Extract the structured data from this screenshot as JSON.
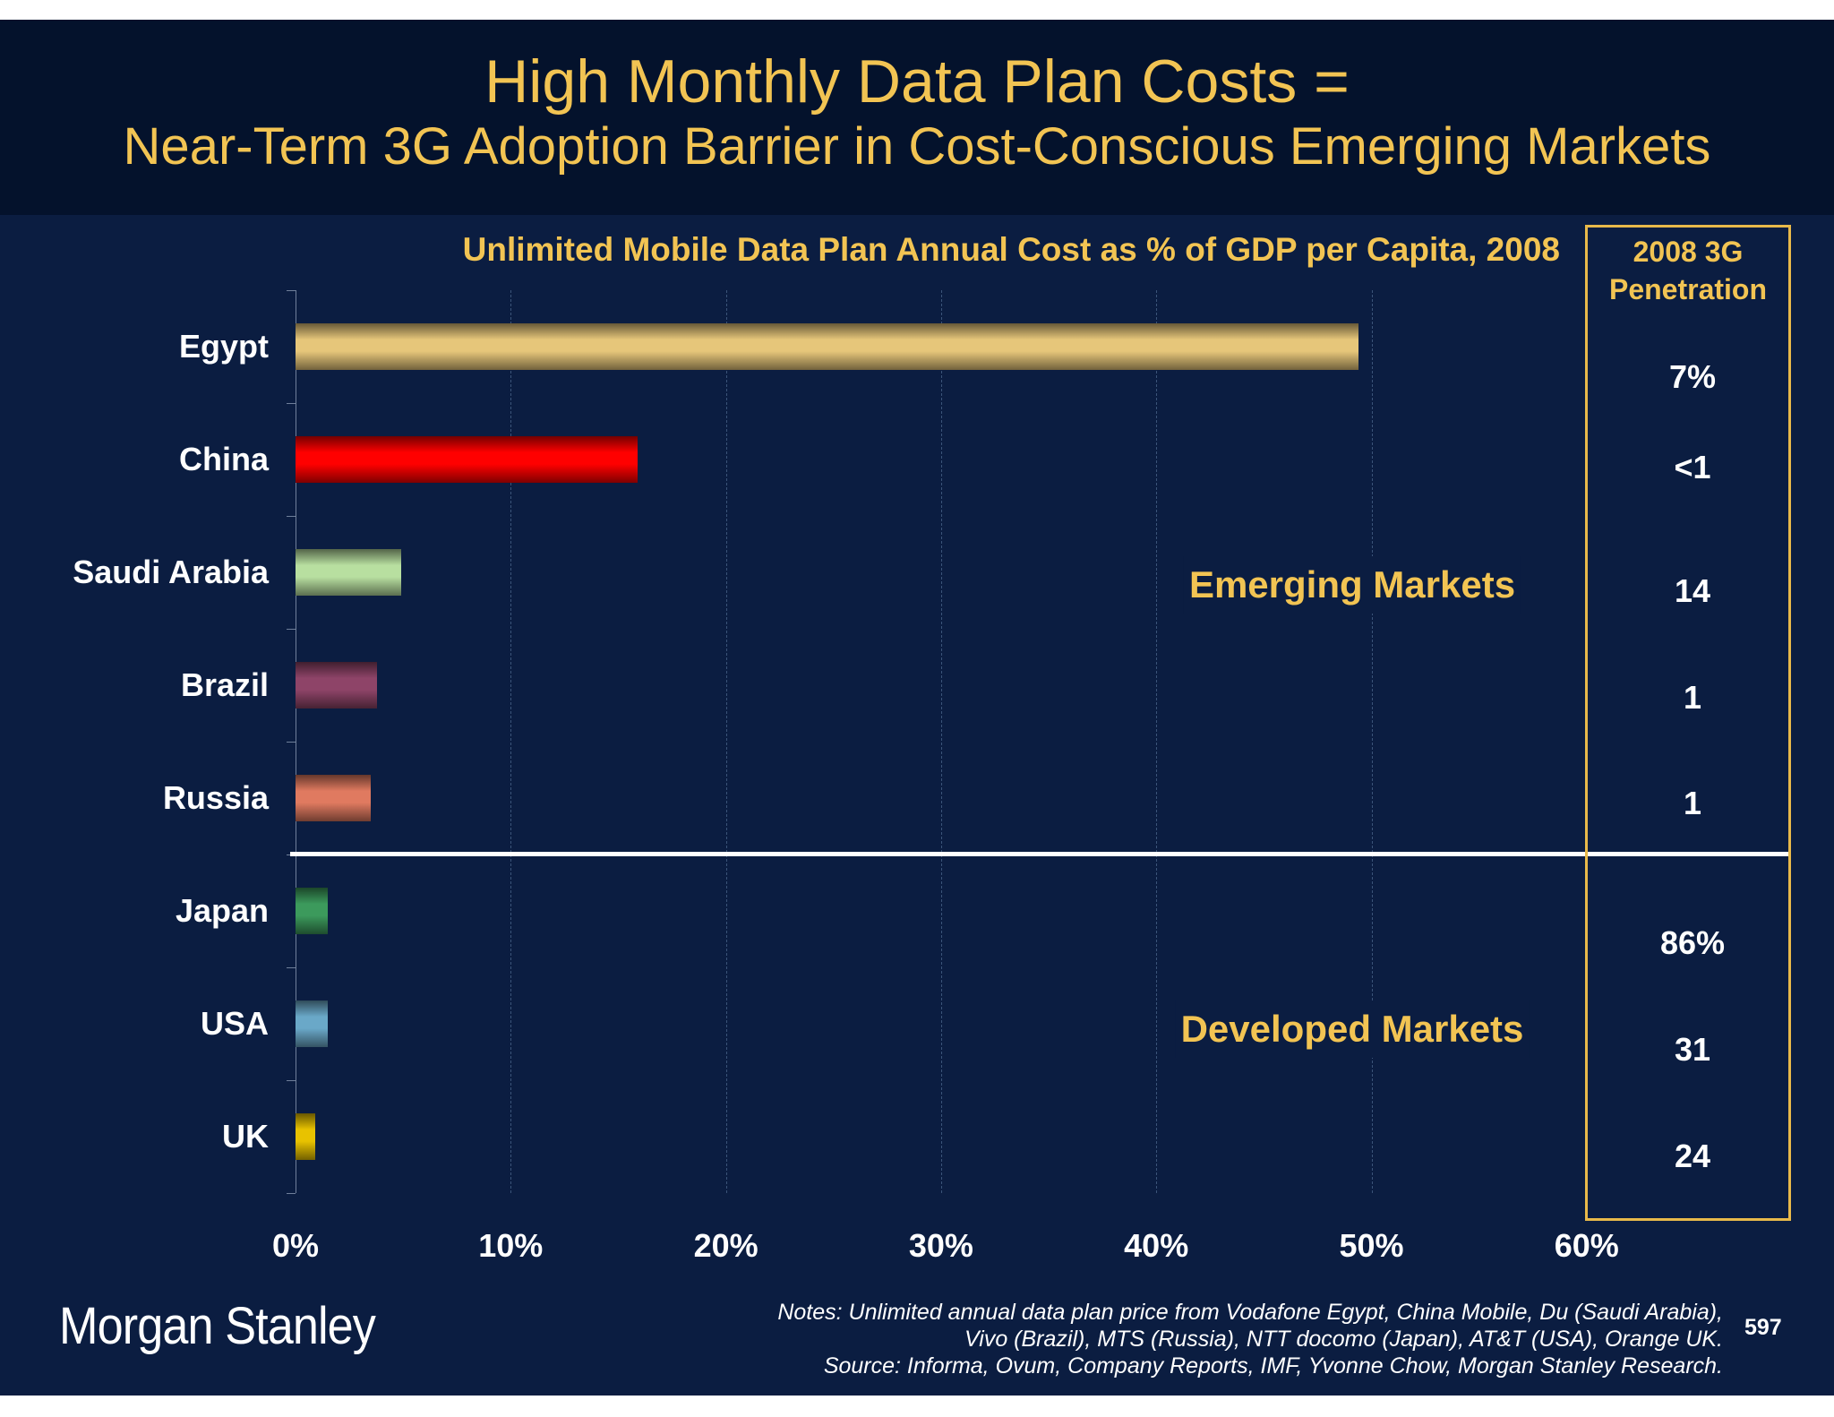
{
  "header": {
    "title_line1": "High Monthly Data Plan Costs =",
    "title_line2": "Near-Term 3G Adoption Barrier in Cost-Conscious Emerging Markets"
  },
  "chart_data": {
    "type": "bar",
    "orientation": "horizontal",
    "title": "Unlimited Mobile Data Plan Annual Cost as % of GDP per Capita, 2008",
    "categories": [
      "Egypt",
      "China",
      "Saudi Arabia",
      "Brazil",
      "Russia",
      "Japan",
      "USA",
      "UK"
    ],
    "values": [
      49.4,
      15.9,
      4.9,
      3.8,
      3.5,
      1.5,
      1.5,
      0.9
    ],
    "unit": "%",
    "xlim": [
      0,
      60
    ],
    "xticks": [
      "0%",
      "10%",
      "20%",
      "30%",
      "40%",
      "50%",
      "60%"
    ],
    "grid": "vertical dashed",
    "bar_colors": [
      "#e6c67a",
      "#ff0000",
      "#b8dfa0",
      "#8e4468",
      "#e07a60",
      "#3c9a5c",
      "#6aa8c8",
      "#e8c200"
    ],
    "group_labels": [
      {
        "label": "Emerging Markets",
        "categories": [
          "Egypt",
          "China",
          "Saudi Arabia",
          "Brazil",
          "Russia"
        ]
      },
      {
        "label": "Developed Markets",
        "categories": [
          "Japan",
          "USA",
          "UK"
        ]
      }
    ]
  },
  "penetration": {
    "heading_line1": "2008 3G",
    "heading_line2": "Penetration",
    "values": [
      "7%",
      "<1",
      "14",
      "1",
      "1",
      "86%",
      "31",
      "24"
    ]
  },
  "footer": {
    "logo": "Morgan Stanley",
    "notes_line1": "Notes: Unlimited annual data plan price from Vodafone Egypt, China Mobile, Du (Saudi Arabia),",
    "notes_line2": "Vivo (Brazil), MTS (Russia), NTT docomo (Japan), AT&T (USA), Orange UK.",
    "notes_line3": "Source: Informa, Ovum, Company Reports, IMF, Yvonne Chow, Morgan Stanley Research.",
    "page_number": "597"
  },
  "colors": {
    "title": "#f2c453",
    "background": "#0b1d41",
    "header_background": "#04122c"
  }
}
